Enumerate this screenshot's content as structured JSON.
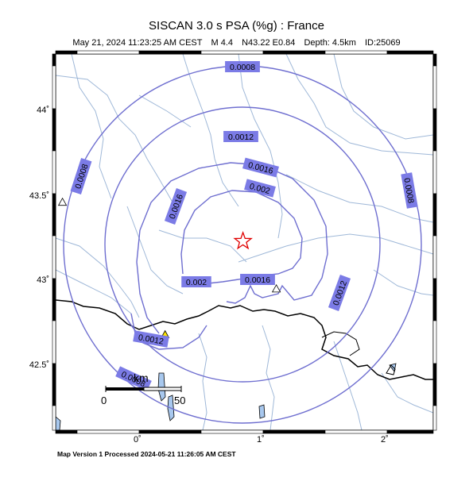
{
  "header": {
    "title": "SISCAN 3.0 s PSA (%g) : France",
    "date": "May 21, 2024 11:23:25 AM CEST",
    "magnitude": "M 4.4",
    "location": "N43.22 E0.84",
    "depth": "Depth: 4.5km",
    "event_id": "ID:25069"
  },
  "axes": {
    "y_ticks": [
      "44˚",
      "43.5˚",
      "43˚",
      "42.5˚"
    ],
    "x_ticks": [
      "0˚",
      "1˚",
      "2˚"
    ]
  },
  "scale_bar": {
    "unit": "km",
    "start": "0",
    "end": "50"
  },
  "contours": [
    {
      "label": "0.0008",
      "level": 0.0008
    },
    {
      "label": "0.0008",
      "level": 0.0008
    },
    {
      "label": "0.0008",
      "level": 0.0008
    },
    {
      "label": "0.0012",
      "level": 0.0012
    },
    {
      "label": "0.0012",
      "level": 0.0012
    },
    {
      "label": "0.0016",
      "level": 0.0016
    },
    {
      "label": "0.0016",
      "level": 0.0016
    },
    {
      "label": "0.002",
      "level": 0.002
    },
    {
      "label": "0.002",
      "level": 0.002
    },
    {
      "label": "0.0016",
      "level": 0.0016
    },
    {
      "label": "0.0012",
      "level": 0.0012
    },
    {
      "label": "0.0008",
      "level": 0.0008
    },
    {
      "label": "0.0012",
      "level": 0.0012
    },
    {
      "label": "0.0008",
      "level": 0.0008
    }
  ],
  "epicenter": {
    "lon": 0.84,
    "lat": 43.22
  },
  "stations": [
    {
      "lon": -0.62,
      "lat": 43.45,
      "color": "#ffffff"
    },
    {
      "lon": 1.11,
      "lat": 42.94,
      "color": "#ffffff"
    },
    {
      "lon": 0.21,
      "lat": 42.67,
      "color": "#ffe600"
    }
  ],
  "colors": {
    "contour": "#6f6fd0",
    "contour_label_bg": "#7b7be6",
    "river": "#9fb8d8",
    "border": "#000000",
    "water": "#a8c8ee",
    "epicenter": "#e00000"
  },
  "footer": {
    "text": "Map Version 1 Processed 2024-05-21 11:26:05 AM CEST"
  }
}
